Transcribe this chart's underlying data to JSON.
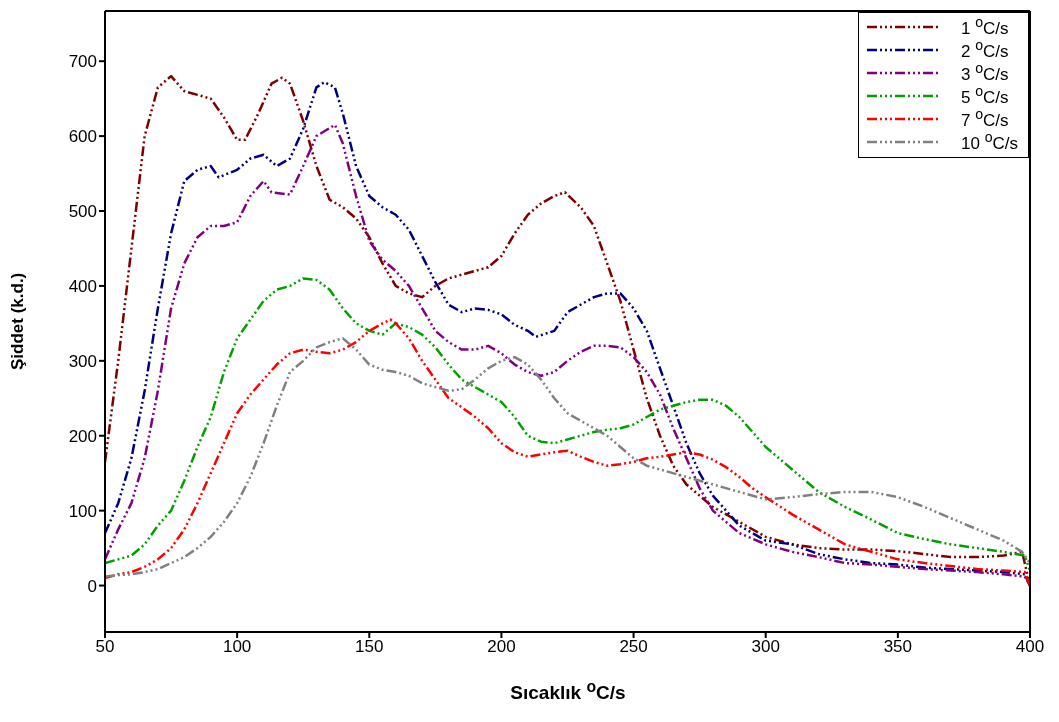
{
  "chart_data": {
    "type": "line",
    "xlabel": "Sıcaklık $^{o}$C/s",
    "ylabel": "Şiddet (k.d.)",
    "xlim": [
      50,
      400
    ],
    "ylim": [
      -62,
      767
    ],
    "xticks": [
      50,
      100,
      150,
      200,
      250,
      300,
      350,
      400
    ],
    "yticks": [
      0,
      100,
      200,
      300,
      400,
      500,
      600,
      700
    ],
    "legend": "top right",
    "line_style": "dashed",
    "series": [
      {
        "name": "1 $^{o}$C/s",
        "color": "#800000",
        "x": [
          50,
          55,
          60,
          65,
          70,
          75,
          80,
          85,
          90,
          95,
          100,
          103,
          108,
          113,
          117,
          120,
          125,
          130,
          135,
          140,
          145,
          150,
          155,
          160,
          165,
          170,
          175,
          180,
          185,
          190,
          195,
          200,
          205,
          210,
          215,
          220,
          224,
          230,
          235,
          240,
          245,
          250,
          255,
          260,
          265,
          270,
          275,
          280,
          290,
          300,
          310,
          320,
          330,
          340,
          350,
          360,
          370,
          380,
          390,
          397,
          400
        ],
        "values": [
          165,
          300,
          450,
          600,
          665,
          680,
          660,
          655,
          650,
          625,
          595,
          595,
          630,
          670,
          678,
          670,
          620,
          560,
          515,
          505,
          490,
          465,
          430,
          400,
          390,
          385,
          400,
          410,
          415,
          420,
          425,
          440,
          470,
          495,
          510,
          520,
          525,
          505,
          480,
          430,
          380,
          315,
          250,
          200,
          160,
          135,
          120,
          105,
          85,
          65,
          55,
          50,
          48,
          48,
          46,
          42,
          38,
          38,
          40,
          45,
          0
        ]
      },
      {
        "name": "2 $^{o}$C/s",
        "color": "#000080",
        "x": [
          50,
          55,
          60,
          65,
          70,
          75,
          80,
          85,
          90,
          93,
          100,
          105,
          110,
          115,
          120,
          125,
          130,
          133,
          137,
          140,
          145,
          150,
          155,
          160,
          165,
          170,
          175,
          180,
          185,
          190,
          195,
          200,
          205,
          210,
          213,
          220,
          225,
          230,
          235,
          240,
          245,
          250,
          255,
          260,
          265,
          270,
          275,
          280,
          290,
          300,
          310,
          320,
          330,
          340,
          350,
          360,
          370,
          380,
          390,
          398,
          400
        ],
        "values": [
          70,
          110,
          170,
          260,
          370,
          470,
          540,
          555,
          560,
          545,
          555,
          570,
          575,
          560,
          570,
          610,
          665,
          672,
          665,
          630,
          560,
          520,
          505,
          495,
          475,
          440,
          405,
          375,
          365,
          370,
          368,
          362,
          348,
          340,
          332,
          340,
          365,
          375,
          385,
          390,
          390,
          370,
          340,
          290,
          240,
          190,
          150,
          120,
          80,
          60,
          55,
          42,
          35,
          30,
          28,
          24,
          22,
          20,
          18,
          15,
          0
        ]
      },
      {
        "name": "3 $^{o}$C/s",
        "color": "#800080",
        "x": [
          50,
          55,
          60,
          65,
          70,
          75,
          80,
          85,
          90,
          95,
          100,
          105,
          110,
          113,
          120,
          125,
          130,
          137,
          140,
          145,
          150,
          155,
          160,
          165,
          170,
          175,
          180,
          185,
          190,
          195,
          200,
          205,
          210,
          215,
          220,
          225,
          230,
          235,
          240,
          245,
          250,
          255,
          260,
          265,
          270,
          275,
          280,
          290,
          300,
          310,
          320,
          330,
          340,
          350,
          360,
          370,
          380,
          390,
          398,
          400
        ],
        "values": [
          35,
          75,
          110,
          170,
          260,
          370,
          430,
          465,
          480,
          480,
          485,
          520,
          540,
          525,
          522,
          560,
          600,
          615,
          590,
          520,
          460,
          435,
          420,
          400,
          370,
          340,
          325,
          315,
          315,
          320,
          310,
          295,
          285,
          280,
          285,
          300,
          312,
          320,
          320,
          318,
          305,
          285,
          255,
          210,
          170,
          130,
          100,
          70,
          55,
          45,
          38,
          30,
          28,
          25,
          22,
          20,
          18,
          15,
          12,
          0
        ]
      },
      {
        "name": "5 $^{o}$C/s",
        "color": "#00a000",
        "x": [
          50,
          55,
          60,
          65,
          70,
          75,
          80,
          85,
          90,
          95,
          100,
          105,
          110,
          115,
          120,
          125,
          130,
          135,
          140,
          145,
          150,
          155,
          160,
          165,
          170,
          175,
          180,
          185,
          190,
          195,
          200,
          205,
          210,
          215,
          220,
          225,
          230,
          235,
          240,
          245,
          250,
          255,
          260,
          265,
          270,
          275,
          280,
          285,
          290,
          295,
          300,
          305,
          310,
          315,
          320,
          330,
          340,
          350,
          360,
          370,
          380,
          390,
          398,
          400
        ],
        "values": [
          30,
          35,
          40,
          55,
          80,
          100,
          140,
          185,
          225,
          285,
          330,
          355,
          380,
          395,
          400,
          410,
          408,
          395,
          370,
          350,
          340,
          335,
          350,
          345,
          335,
          318,
          295,
          275,
          265,
          255,
          245,
          225,
          200,
          192,
          190,
          195,
          200,
          205,
          208,
          210,
          215,
          225,
          235,
          240,
          245,
          248,
          248,
          240,
          225,
          205,
          185,
          170,
          155,
          140,
          125,
          105,
          88,
          70,
          62,
          55,
          50,
          45,
          40,
          20
        ]
      },
      {
        "name": "7 $^{o}$C/s",
        "color": "#ff0000",
        "x": [
          50,
          55,
          60,
          65,
          70,
          75,
          80,
          85,
          90,
          95,
          100,
          105,
          110,
          115,
          120,
          125,
          130,
          135,
          140,
          145,
          150,
          155,
          158,
          160,
          165,
          170,
          175,
          180,
          185,
          190,
          195,
          200,
          205,
          210,
          215,
          220,
          225,
          230,
          235,
          240,
          245,
          250,
          255,
          260,
          265,
          270,
          275,
          280,
          285,
          290,
          295,
          300,
          310,
          320,
          330,
          340,
          350,
          360,
          370,
          380,
          390,
          398,
          400
        ],
        "values": [
          10,
          15,
          18,
          25,
          35,
          50,
          75,
          110,
          150,
          190,
          230,
          255,
          275,
          295,
          310,
          315,
          312,
          310,
          315,
          325,
          340,
          350,
          355,
          350,
          330,
          300,
          275,
          250,
          238,
          225,
          210,
          190,
          178,
          172,
          175,
          178,
          180,
          172,
          165,
          160,
          162,
          165,
          170,
          172,
          175,
          178,
          175,
          168,
          158,
          145,
          130,
          118,
          95,
          75,
          55,
          45,
          35,
          30,
          26,
          22,
          20,
          18,
          0
        ]
      },
      {
        "name": "10 $^{o}$C/s",
        "color": "#808080",
        "x": [
          50,
          55,
          60,
          65,
          70,
          75,
          80,
          85,
          90,
          95,
          100,
          105,
          110,
          115,
          120,
          125,
          130,
          135,
          140,
          145,
          150,
          155,
          160,
          165,
          170,
          175,
          180,
          185,
          190,
          195,
          200,
          205,
          210,
          215,
          220,
          225,
          230,
          235,
          240,
          245,
          250,
          255,
          260,
          270,
          280,
          290,
          300,
          310,
          320,
          330,
          340,
          350,
          360,
          370,
          380,
          390,
          397,
          400
        ],
        "values": [
          12,
          14,
          15,
          18,
          22,
          30,
          38,
          50,
          65,
          85,
          110,
          145,
          190,
          240,
          285,
          300,
          318,
          325,
          330,
          315,
          295,
          288,
          285,
          280,
          270,
          265,
          260,
          262,
          275,
          290,
          300,
          305,
          295,
          275,
          250,
          230,
          220,
          210,
          200,
          185,
          170,
          160,
          155,
          145,
          135,
          125,
          115,
          118,
          122,
          125,
          125,
          118,
          105,
          90,
          75,
          60,
          45,
          30
        ]
      }
    ]
  }
}
